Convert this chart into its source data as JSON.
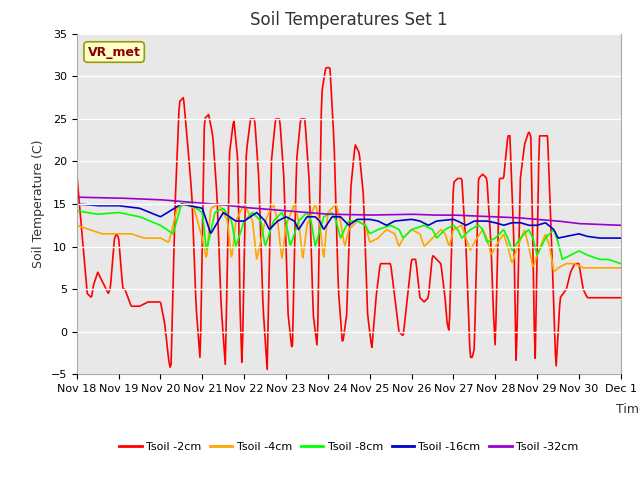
{
  "title": "Soil Temperatures Set 1",
  "xlabel": "Time",
  "ylabel": "Soil Temperature (C)",
  "ylim": [
    -5,
    35
  ],
  "xlim": [
    0,
    13
  ],
  "x_tick_labels": [
    "Nov 18",
    "Nov 19",
    "Nov 20",
    "Nov 21",
    "Nov 22",
    "Nov 23",
    "Nov 24",
    "Nov 25",
    "Nov 26",
    "Nov 27",
    "Nov 28",
    "Nov 29",
    "Nov 30",
    "Dec 1"
  ],
  "fig_bg_color": "#ffffff",
  "plot_bg_color": "#e8e8e8",
  "annotation_text": "VR_met",
  "annotation_box_color": "#ffffcc",
  "annotation_text_color": "#8b0000",
  "annotation_edge_color": "#999900",
  "line_colors": [
    "#ff0000",
    "#ffa500",
    "#00ff00",
    "#0000cc",
    "#9900cc"
  ],
  "line_labels": [
    "Tsoil -2cm",
    "Tsoil -4cm",
    "Tsoil -8cm",
    "Tsoil -16cm",
    "Tsoil -32cm"
  ],
  "line_width": 1.2,
  "grid_color": "#ffffff",
  "title_fontsize": 12,
  "label_fontsize": 9,
  "tick_fontsize": 8
}
